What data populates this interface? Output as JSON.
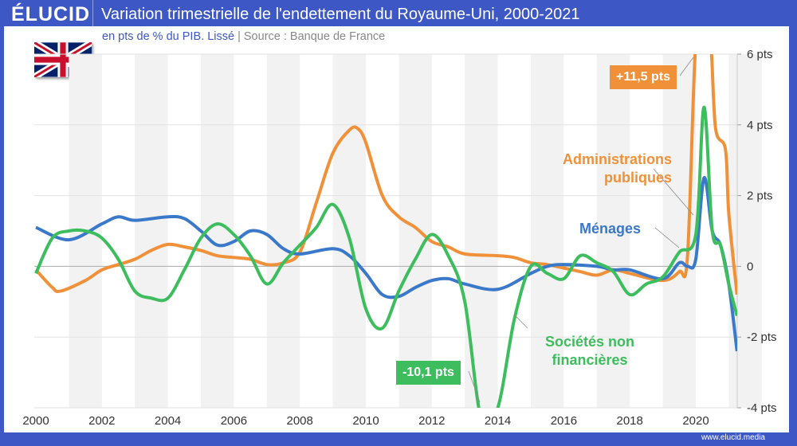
{
  "header": {
    "logo": "ÉLUCID",
    "title": "Variation trimestrielle de l'endettement du Royaume-Uni, 2000-2021",
    "subtitle": "en pts de % du PIB. Lissé",
    "separator": "|",
    "source": "Source : Banque de France",
    "footer": "www.elucid.media"
  },
  "colors": {
    "brand": "#3d58c4",
    "menages": "#3a78c9",
    "administrations": "#f0913a",
    "societes": "#3dbd5e"
  },
  "chart_data": {
    "type": "line",
    "xlim": [
      2000,
      2021.25
    ],
    "ylim": [
      -4,
      6
    ],
    "x_ticks": [
      "2000",
      "2002",
      "2004",
      "2006",
      "2008",
      "2010",
      "2012",
      "2014",
      "2016",
      "2018",
      "2020"
    ],
    "y_ticks": [
      {
        "v": 6,
        "label": "6 pts"
      },
      {
        "v": 4,
        "label": "4 pts"
      },
      {
        "v": 2,
        "label": "2 pts"
      },
      {
        "v": 0,
        "label": "0"
      },
      {
        "v": -2,
        "label": "-2 pts"
      },
      {
        "v": -4,
        "label": "-4 pts"
      }
    ],
    "grid": true,
    "series": [
      {
        "name": "Ménages",
        "color": "#3a78c9",
        "points": [
          [
            2000,
            1.1
          ],
          [
            2001,
            0.75
          ],
          [
            2002,
            1.2
          ],
          [
            2002.5,
            1.4
          ],
          [
            2003,
            1.3
          ],
          [
            2004,
            1.4
          ],
          [
            2004.5,
            1.35
          ],
          [
            2005,
            1.0
          ],
          [
            2005.5,
            0.6
          ],
          [
            2006,
            0.7
          ],
          [
            2006.5,
            1.0
          ],
          [
            2007,
            0.9
          ],
          [
            2007.5,
            0.5
          ],
          [
            2008,
            0.35
          ],
          [
            2009,
            0.5
          ],
          [
            2009.5,
            0.3
          ],
          [
            2010,
            -0.2
          ],
          [
            2010.5,
            -0.8
          ],
          [
            2011,
            -0.85
          ],
          [
            2011.5,
            -0.6
          ],
          [
            2012,
            -0.4
          ],
          [
            2012.5,
            -0.35
          ],
          [
            2013,
            -0.5
          ],
          [
            2014,
            -0.65
          ],
          [
            2015,
            -0.2
          ],
          [
            2015.5,
            0.0
          ],
          [
            2016,
            0.05
          ],
          [
            2017,
            0.0
          ],
          [
            2017.5,
            -0.1
          ],
          [
            2018,
            -0.1
          ],
          [
            2019,
            -0.35
          ],
          [
            2019.5,
            0.1
          ],
          [
            2019.75,
            0.0
          ],
          [
            2020,
            0.2
          ],
          [
            2020.25,
            2.5
          ],
          [
            2020.5,
            1.0
          ],
          [
            2020.75,
            0.6
          ],
          [
            2021,
            -0.5
          ],
          [
            2021.25,
            -2.4
          ]
        ]
      },
      {
        "name": "Administrations publiques",
        "color": "#f0913a",
        "points": [
          [
            2000,
            -0.1
          ],
          [
            2000.5,
            -0.6
          ],
          [
            2000.75,
            -0.7
          ],
          [
            2001.5,
            -0.4
          ],
          [
            2002,
            -0.1
          ],
          [
            2002.5,
            0.05
          ],
          [
            2003,
            0.2
          ],
          [
            2003.5,
            0.45
          ],
          [
            2004,
            0.62
          ],
          [
            2004.5,
            0.55
          ],
          [
            2005,
            0.45
          ],
          [
            2005.5,
            0.3
          ],
          [
            2006,
            0.25
          ],
          [
            2006.5,
            0.2
          ],
          [
            2007,
            0.05
          ],
          [
            2007.5,
            0.1
          ],
          [
            2008,
            0.4
          ],
          [
            2008.5,
            1.8
          ],
          [
            2009,
            3.2
          ],
          [
            2009.5,
            3.85
          ],
          [
            2009.75,
            3.9
          ],
          [
            2010,
            3.5
          ],
          [
            2010.5,
            2.0
          ],
          [
            2011,
            1.4
          ],
          [
            2011.5,
            1.1
          ],
          [
            2012,
            0.7
          ],
          [
            2012.5,
            0.55
          ],
          [
            2013,
            0.35
          ],
          [
            2014,
            0.3
          ],
          [
            2014.5,
            0.25
          ],
          [
            2015,
            0.1
          ],
          [
            2015.5,
            0.05
          ],
          [
            2016,
            -0.05
          ],
          [
            2016.5,
            -0.15
          ],
          [
            2017,
            -0.25
          ],
          [
            2017.5,
            -0.1
          ],
          [
            2018,
            -0.2
          ],
          [
            2019,
            -0.4
          ],
          [
            2019.5,
            -0.15
          ],
          [
            2019.75,
            0.3
          ],
          [
            2020,
            6.5
          ],
          [
            2020.25,
            11.5
          ],
          [
            2020.45,
            6.5
          ],
          [
            2020.6,
            3.9
          ],
          [
            2020.9,
            3.3
          ],
          [
            2021,
            1.5
          ],
          [
            2021.25,
            -0.8
          ]
        ]
      },
      {
        "name": "Sociétés non financières",
        "color": "#3dbd5e",
        "points": [
          [
            2000,
            -0.2
          ],
          [
            2000.5,
            0.8
          ],
          [
            2001,
            1.0
          ],
          [
            2001.5,
            1.0
          ],
          [
            2002,
            0.8
          ],
          [
            2002.5,
            0.2
          ],
          [
            2003,
            -0.7
          ],
          [
            2003.5,
            -0.9
          ],
          [
            2004,
            -0.9
          ],
          [
            2004.5,
            -0.1
          ],
          [
            2005,
            0.8
          ],
          [
            2005.5,
            1.2
          ],
          [
            2006,
            0.9
          ],
          [
            2006.5,
            0.3
          ],
          [
            2007,
            -0.5
          ],
          [
            2007.5,
            0.1
          ],
          [
            2008,
            0.6
          ],
          [
            2008.5,
            1.1
          ],
          [
            2009,
            1.75
          ],
          [
            2009.5,
            0.8
          ],
          [
            2010,
            -1.2
          ],
          [
            2010.5,
            -1.75
          ],
          [
            2011,
            -0.7
          ],
          [
            2011.5,
            0.2
          ],
          [
            2012,
            0.9
          ],
          [
            2012.5,
            0.3
          ],
          [
            2013,
            -1.0
          ],
          [
            2013.5,
            -10.1
          ],
          [
            2014,
            -4
          ],
          [
            2014.5,
            -1.5
          ],
          [
            2015,
            0.0
          ],
          [
            2015.5,
            -0.2
          ],
          [
            2016,
            -0.35
          ],
          [
            2016.5,
            0.3
          ],
          [
            2017,
            0.1
          ],
          [
            2017.5,
            -0.15
          ],
          [
            2018,
            -0.8
          ],
          [
            2018.5,
            -0.5
          ],
          [
            2019,
            -0.3
          ],
          [
            2019.5,
            0.4
          ],
          [
            2020,
            0.9
          ],
          [
            2020.25,
            4.5
          ],
          [
            2020.5,
            1.0
          ],
          [
            2020.75,
            0.6
          ],
          [
            2021,
            -0.5
          ],
          [
            2021.25,
            -1.4
          ]
        ]
      }
    ],
    "annotations": {
      "peak_admin": "+11,5 pts",
      "trough_snf": "-10,1 pts",
      "label_admin_1": "Administrations",
      "label_admin_2": "publiques",
      "label_menages": "Ménages",
      "label_snf_1": "Sociétés non",
      "label_snf_2": "financières"
    }
  }
}
